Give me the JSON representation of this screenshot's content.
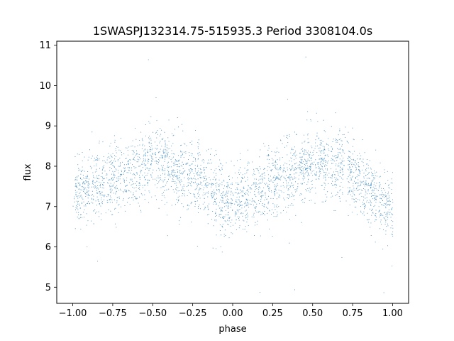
{
  "chart_data": {
    "type": "scatter",
    "title": "1SWASPJ132314.75-515935.3 Period 3308104.0s",
    "xlabel": "phase",
    "ylabel": "flux",
    "xlim": [
      -1.1,
      1.1
    ],
    "ylim": [
      4.6,
      11.1
    ],
    "xticks": [
      -1.0,
      -0.75,
      -0.5,
      -0.25,
      0.0,
      0.25,
      0.5,
      0.75,
      1.0
    ],
    "xtick_labels": [
      "−1.00",
      "−0.75",
      "−0.50",
      "−0.25",
      "0.00",
      "0.25",
      "0.50",
      "0.75",
      "1.00"
    ],
    "yticks": [
      5,
      6,
      7,
      8,
      9,
      10,
      11
    ],
    "ytick_labels": [
      "5",
      "6",
      "7",
      "8",
      "9",
      "10",
      "11"
    ],
    "grid": false,
    "marker_color": "#1f77b4",
    "series": [
      {
        "description_level": [
          {
            "phase": -1.0,
            "flux": 7.4
          },
          {
            "phase": -0.9,
            "flux": 7.5
          },
          {
            "phase": -0.8,
            "flux": 7.6
          },
          {
            "phase": -0.75,
            "flux": 7.7
          },
          {
            "phase": -0.6,
            "flux": 7.9
          },
          {
            "phase": -0.5,
            "flux": 8.1
          },
          {
            "phase": -0.44,
            "flux": 8.1
          },
          {
            "phase": -0.35,
            "flux": 7.9
          },
          {
            "phase": -0.25,
            "flux": 7.8
          },
          {
            "phase": -0.15,
            "flux": 7.5
          },
          {
            "phase": -0.05,
            "flux": 7.1
          },
          {
            "phase": 0.0,
            "flux": 7.0
          },
          {
            "phase": 0.05,
            "flux": 7.2
          },
          {
            "phase": 0.15,
            "flux": 7.4
          },
          {
            "phase": 0.25,
            "flux": 7.6
          },
          {
            "phase": 0.35,
            "flux": 7.8
          },
          {
            "phase": 0.45,
            "flux": 8.0
          },
          {
            "phase": 0.56,
            "flux": 8.1
          },
          {
            "phase": 0.65,
            "flux": 8.0
          },
          {
            "phase": 0.75,
            "flux": 7.8
          },
          {
            "phase": 0.85,
            "flux": 7.5
          },
          {
            "phase": 0.95,
            "flux": 7.1
          },
          {
            "phase": 1.0,
            "flux": 7.0
          }
        ]
      }
    ]
  }
}
